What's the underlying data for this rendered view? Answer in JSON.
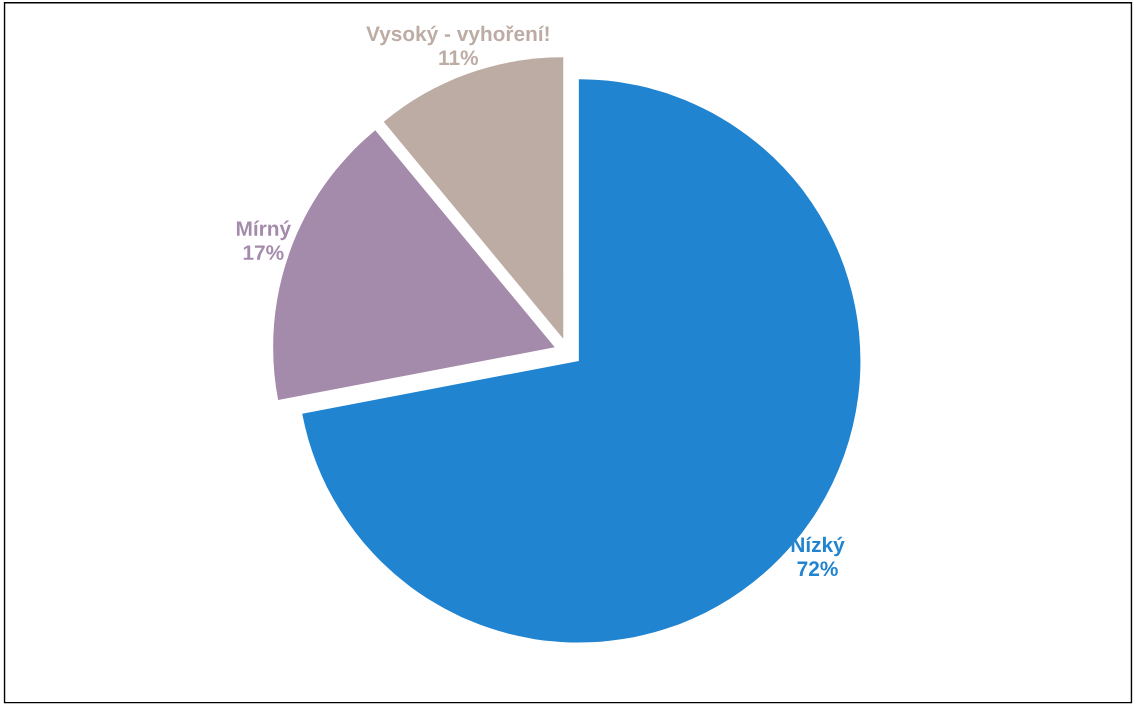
{
  "chart_data": {
    "type": "pie",
    "categories": [
      "Nízký",
      "Mírný",
      "Vysoký - vyhoření!"
    ],
    "values": [
      72,
      17,
      11
    ],
    "colors": [
      "#2084d0",
      "#a58bab",
      "#bcaca4"
    ],
    "value_labels": [
      "72%",
      "17%",
      "11%"
    ]
  }
}
